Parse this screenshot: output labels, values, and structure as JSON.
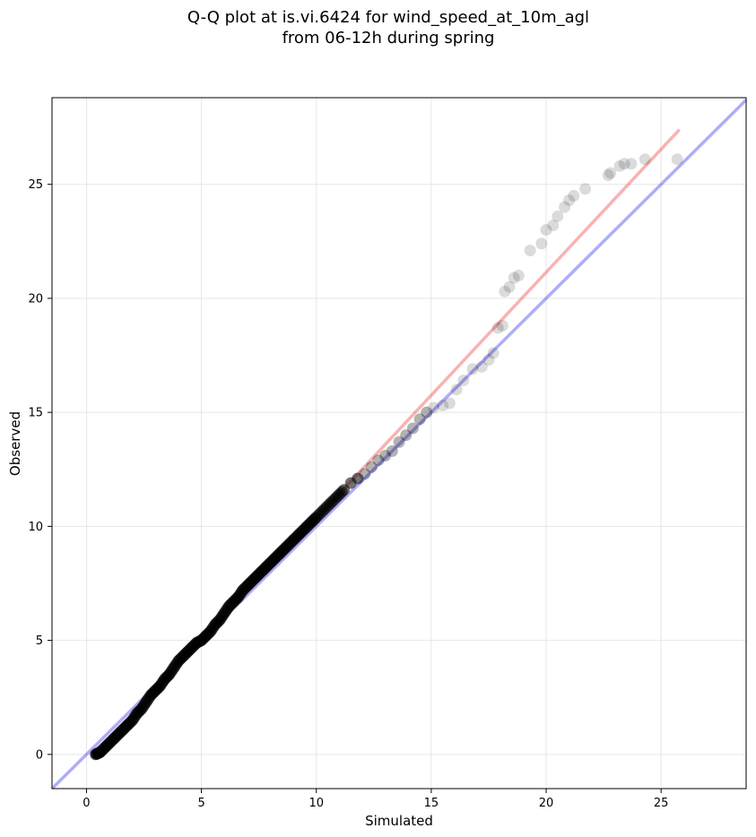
{
  "chart_data": {
    "type": "scatter",
    "title_line1": "Q-Q plot at is.vi.6424 for wind_speed_at_10m_agl",
    "title_line2": "from 06-12h during spring",
    "xlabel": "Simulated",
    "ylabel": "Observed",
    "xlim": [
      -1.5,
      28.7
    ],
    "ylim": [
      -1.5,
      28.8
    ],
    "xticks": [
      0,
      5,
      10,
      15,
      20,
      25
    ],
    "yticks": [
      0,
      5,
      10,
      15,
      20,
      25
    ],
    "grid": true,
    "colors": {
      "points": "#000000",
      "identity_line": "#0000ee",
      "fit_line": "#ee2222",
      "grid": "#e6e6e6"
    },
    "identity_line": {
      "x": [
        -1.5,
        28.7
      ],
      "y": [
        -1.5,
        28.7
      ]
    },
    "fit_line": {
      "x": [
        0.3,
        25.8
      ],
      "y": [
        -0.1,
        27.4
      ]
    },
    "points": {
      "x": [
        0.4,
        0.5,
        0.6,
        0.8,
        1.0,
        1.2,
        1.4,
        1.6,
        1.8,
        2.0,
        2.2,
        2.4,
        2.6,
        2.8,
        3.0,
        3.2,
        3.4,
        3.6,
        3.8,
        4.0,
        4.2,
        4.4,
        4.6,
        4.8,
        5.0,
        5.2,
        5.4,
        5.6,
        5.8,
        6.0,
        6.2,
        6.4,
        6.6,
        6.8,
        7.0,
        7.2,
        7.4,
        7.6,
        7.8,
        8.0,
        8.2,
        8.4,
        8.6,
        8.8,
        9.0,
        9.2,
        9.4,
        9.6,
        9.8,
        10.0,
        10.3,
        10.6,
        10.9,
        11.2,
        11.5,
        11.8,
        12.1,
        12.4,
        12.7,
        13.0,
        13.3,
        13.6,
        13.9,
        14.2,
        14.5,
        14.8,
        15.1,
        15.5,
        15.8,
        16.1,
        16.4,
        16.8,
        17.2,
        17.5,
        17.7,
        17.9,
        18.1,
        18.2,
        18.4,
        18.6,
        18.8,
        19.3,
        19.8,
        20.0,
        20.3,
        20.5,
        20.8,
        21.0,
        21.2,
        21.7,
        22.7,
        22.8,
        23.2,
        23.4,
        23.7,
        24.3,
        25.7
      ],
      "y": [
        0.0,
        0.05,
        0.1,
        0.3,
        0.5,
        0.7,
        0.9,
        1.1,
        1.3,
        1.5,
        1.8,
        2.0,
        2.3,
        2.6,
        2.8,
        3.0,
        3.3,
        3.5,
        3.8,
        4.1,
        4.3,
        4.5,
        4.7,
        4.9,
        5.0,
        5.2,
        5.4,
        5.7,
        5.9,
        6.2,
        6.5,
        6.7,
        6.9,
        7.2,
        7.4,
        7.6,
        7.8,
        8.0,
        8.2,
        8.4,
        8.6,
        8.8,
        9.0,
        9.2,
        9.4,
        9.6,
        9.8,
        10.0,
        10.2,
        10.4,
        10.7,
        11.0,
        11.3,
        11.6,
        11.9,
        12.1,
        12.3,
        12.6,
        12.9,
        13.1,
        13.3,
        13.7,
        14.0,
        14.3,
        14.7,
        15.0,
        15.2,
        15.3,
        15.4,
        16.0,
        16.4,
        16.9,
        17.0,
        17.3,
        17.6,
        18.7,
        18.8,
        20.3,
        20.5,
        20.9,
        21.0,
        22.1,
        22.4,
        23.0,
        23.2,
        23.6,
        24.0,
        24.3,
        24.5,
        24.8,
        25.4,
        25.5,
        25.8,
        25.9,
        25.9,
        26.1,
        26.1
      ]
    }
  }
}
